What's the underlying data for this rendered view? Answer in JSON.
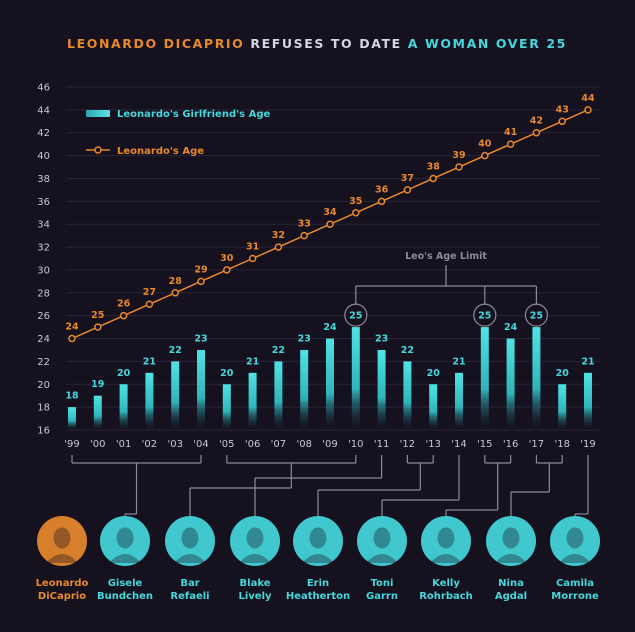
{
  "title": {
    "part1": "LEONARDO DICAPRIO",
    "part2": " REFUSES TO DATE ",
    "part3": "A WOMAN OVER 25"
  },
  "colors": {
    "background": "#15111f",
    "orange": "#e8892b",
    "cyan": "#45d8dd",
    "grid": "#2a2638",
    "text": "#c9c6d6",
    "connector": "#8e8a9c"
  },
  "annotation": "Leo's Age Limit",
  "chart_data": {
    "type": "bar",
    "categories": [
      "'99",
      "'00",
      "'01",
      "'02",
      "'03",
      "'04",
      "'05",
      "'06",
      "'07",
      "'08",
      "'09",
      "'10",
      "'11",
      "'12",
      "'13",
      "'14",
      "'15",
      "'16",
      "'17",
      "'18",
      "'19"
    ],
    "ylim": [
      16,
      46
    ],
    "yticks": [
      16,
      18,
      20,
      22,
      24,
      26,
      28,
      30,
      32,
      34,
      36,
      38,
      40,
      42,
      44,
      46
    ],
    "grid": true,
    "legend_position": "top-left",
    "series": [
      {
        "name": "Leonardo's Girlfriend's Age",
        "type": "bar",
        "color": "#45d8dd",
        "values": [
          18,
          19,
          20,
          21,
          22,
          23,
          20,
          21,
          22,
          23,
          24,
          25,
          23,
          22,
          20,
          21,
          25,
          24,
          25,
          20,
          21
        ]
      },
      {
        "name": "Leonardo's Age",
        "type": "line",
        "color": "#e8892b",
        "values": [
          24,
          25,
          26,
          27,
          28,
          29,
          30,
          31,
          32,
          33,
          34,
          35,
          36,
          37,
          38,
          39,
          40,
          41,
          42,
          43,
          44
        ]
      }
    ],
    "highlighted_categories": [
      "'10",
      "'15",
      "'17"
    ]
  },
  "people": [
    {
      "first": "Leonardo",
      "last": "DiCaprio",
      "color": "orange",
      "icon": "leonardo-portrait"
    },
    {
      "first": "Gisele",
      "last": "Bundchen",
      "color": "cyan",
      "icon": "gisele-portrait",
      "years": [
        0,
        5
      ]
    },
    {
      "first": "Bar",
      "last": "Refaeli",
      "color": "cyan",
      "icon": "bar-portrait",
      "years": [
        6,
        11
      ]
    },
    {
      "first": "Blake",
      "last": "Lively",
      "color": "cyan",
      "icon": "blake-portrait",
      "years": [
        12,
        12
      ]
    },
    {
      "first": "Erin",
      "last": "Heatherton",
      "color": "cyan",
      "icon": "erin-portrait",
      "years": [
        13,
        14
      ]
    },
    {
      "first": "Toni",
      "last": "Garrn",
      "color": "cyan",
      "icon": "toni-portrait",
      "years": [
        15,
        15
      ]
    },
    {
      "first": "Kelly",
      "last": "Rohrbach",
      "color": "cyan",
      "icon": "kelly-portrait",
      "years": [
        16,
        17
      ]
    },
    {
      "first": "Nina",
      "last": "Agdal",
      "color": "cyan",
      "icon": "nina-portrait",
      "years": [
        18,
        19
      ]
    },
    {
      "first": "Camila",
      "last": "Morrone",
      "color": "cyan",
      "icon": "camila-portrait",
      "years": [
        20,
        21
      ]
    }
  ]
}
